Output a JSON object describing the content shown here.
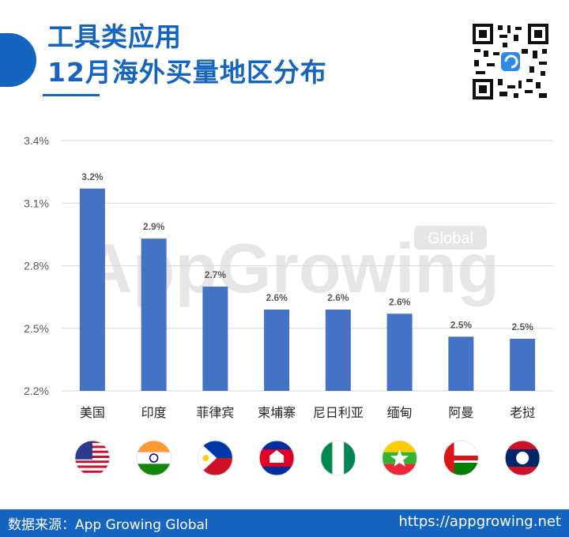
{
  "header": {
    "title_line1": "工具类应用",
    "title_line2": "12月海外买量地区分布"
  },
  "colors": {
    "brand": "#1565c0",
    "bar": "#4472c4",
    "gridline": "#d9d9d9",
    "label": "#595959"
  },
  "chart_data": {
    "type": "bar",
    "categories": [
      "美国",
      "印度",
      "菲律宾",
      "柬埔寨",
      "尼日利亚",
      "缅甸",
      "阿曼",
      "老挝"
    ],
    "values": [
      3.17,
      2.93,
      2.7,
      2.59,
      2.59,
      2.57,
      2.46,
      2.45
    ],
    "data_labels": [
      "3.2%",
      "2.9%",
      "2.7%",
      "2.6%",
      "2.6%",
      "2.6%",
      "2.5%",
      "2.5%"
    ],
    "y_ticks": [
      2.2,
      2.5,
      2.8,
      3.1,
      3.4
    ],
    "y_tick_labels": [
      "2.2%",
      "2.5%",
      "2.8%",
      "3.1%",
      "3.4%"
    ],
    "ylim": [
      2.2,
      3.4
    ],
    "grid": true,
    "flags": [
      "us-flag-icon",
      "india-flag-icon",
      "philippines-flag-icon",
      "cambodia-flag-icon",
      "nigeria-flag-icon",
      "myanmar-flag-icon",
      "oman-flag-icon",
      "laos-flag-icon"
    ]
  },
  "watermark": {
    "text": "AppGrowing",
    "badge": "Global"
  },
  "footer": {
    "source": "数据来源：App Growing Global",
    "url": "https://appgrowing.net"
  }
}
